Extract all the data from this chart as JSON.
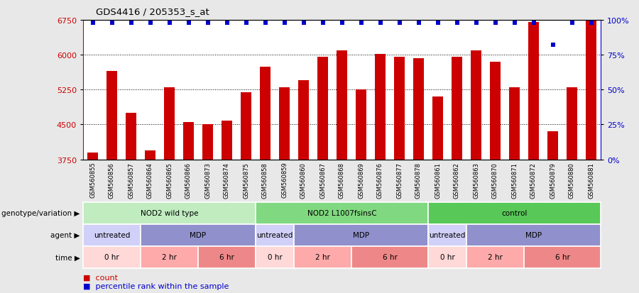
{
  "title": "GDS4416 / 205353_s_at",
  "samples": [
    "GSM560855",
    "GSM560856",
    "GSM560857",
    "GSM560864",
    "GSM560865",
    "GSM560866",
    "GSM560873",
    "GSM560874",
    "GSM560875",
    "GSM560858",
    "GSM560859",
    "GSM560860",
    "GSM560867",
    "GSM560868",
    "GSM560869",
    "GSM560876",
    "GSM560877",
    "GSM560878",
    "GSM560861",
    "GSM560862",
    "GSM560863",
    "GSM560870",
    "GSM560871",
    "GSM560872",
    "GSM560879",
    "GSM560880",
    "GSM560881"
  ],
  "bar_values": [
    3900,
    5650,
    4750,
    3950,
    5300,
    4550,
    4500,
    4580,
    5200,
    5750,
    5300,
    5450,
    5950,
    6100,
    5250,
    6020,
    5950,
    5920,
    5100,
    5950,
    6100,
    5850,
    5300,
    6700,
    4350,
    5300,
    6750
  ],
  "percentile_values": [
    98,
    98,
    98,
    98,
    98,
    98,
    98,
    98,
    98,
    98,
    98,
    98,
    98,
    98,
    98,
    98,
    98,
    98,
    98,
    98,
    98,
    98,
    98,
    98,
    82,
    98,
    98
  ],
  "ylim_left": [
    3750,
    6750
  ],
  "ylim_right": [
    0,
    100
  ],
  "yticks_left": [
    3750,
    4500,
    5250,
    6000,
    6750
  ],
  "yticks_right": [
    0,
    25,
    50,
    75,
    100
  ],
  "bar_color": "#cc0000",
  "dot_color": "#0000cc",
  "bg_color": "#e8e8e8",
  "plot_bg": "#ffffff",
  "xtick_bg": "#d8d8d8",
  "genotype_groups": [
    {
      "label": "NOD2 wild type",
      "start": 0,
      "end": 9,
      "color": "#c0ecc0"
    },
    {
      "label": "NOD2 L1007fsinsC",
      "start": 9,
      "end": 18,
      "color": "#80d880"
    },
    {
      "label": "control",
      "start": 18,
      "end": 27,
      "color": "#58c858"
    }
  ],
  "agent_groups": [
    {
      "label": "untreated",
      "start": 0,
      "end": 3,
      "color": "#d0d0f8"
    },
    {
      "label": "MDP",
      "start": 3,
      "end": 9,
      "color": "#9090cc"
    },
    {
      "label": "untreated",
      "start": 9,
      "end": 11,
      "color": "#d0d0f8"
    },
    {
      "label": "MDP",
      "start": 11,
      "end": 18,
      "color": "#9090cc"
    },
    {
      "label": "untreated",
      "start": 18,
      "end": 20,
      "color": "#d0d0f8"
    },
    {
      "label": "MDP",
      "start": 20,
      "end": 27,
      "color": "#9090cc"
    }
  ],
  "time_groups": [
    {
      "label": "0 hr",
      "start": 0,
      "end": 3,
      "color": "#ffd8d8"
    },
    {
      "label": "2 hr",
      "start": 3,
      "end": 6,
      "color": "#ffaaaa"
    },
    {
      "label": "6 hr",
      "start": 6,
      "end": 9,
      "color": "#ee8888"
    },
    {
      "label": "0 hr",
      "start": 9,
      "end": 11,
      "color": "#ffd8d8"
    },
    {
      "label": "2 hr",
      "start": 11,
      "end": 14,
      "color": "#ffaaaa"
    },
    {
      "label": "6 hr",
      "start": 14,
      "end": 18,
      "color": "#ee8888"
    },
    {
      "label": "0 hr",
      "start": 18,
      "end": 20,
      "color": "#ffd8d8"
    },
    {
      "label": "2 hr",
      "start": 20,
      "end": 23,
      "color": "#ffaaaa"
    },
    {
      "label": "6 hr",
      "start": 23,
      "end": 27,
      "color": "#ee8888"
    }
  ],
  "row_labels": [
    "genotype/variation",
    "agent",
    "time"
  ],
  "legend_items": [
    {
      "label": "count",
      "color": "#cc0000",
      "marker": "s"
    },
    {
      "label": "percentile rank within the sample",
      "color": "#0000cc",
      "marker": "s"
    }
  ]
}
